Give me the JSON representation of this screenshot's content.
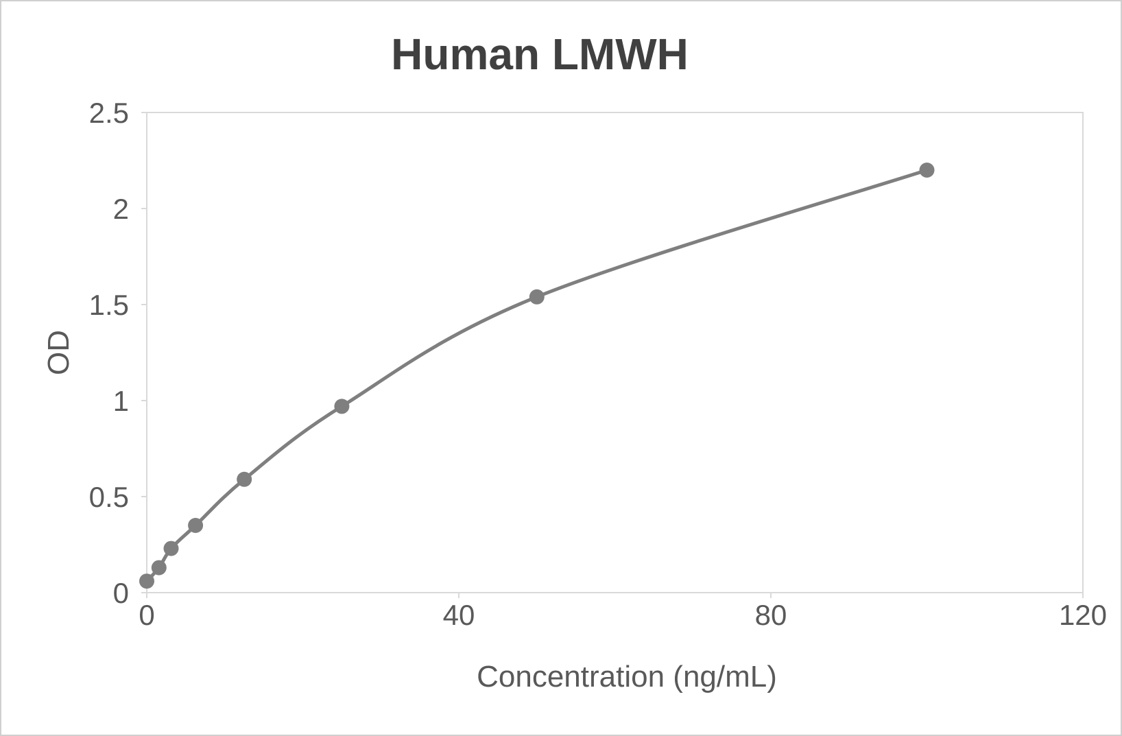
{
  "chart_data": {
    "type": "line",
    "title": "Human LMWH",
    "xlabel": "Concentration (ng/mL)",
    "ylabel": "OD",
    "x": [
      0,
      1.5625,
      3.125,
      6.25,
      12.5,
      25,
      50,
      100
    ],
    "y": [
      0.06,
      0.13,
      0.23,
      0.35,
      0.59,
      0.97,
      1.54,
      2.2
    ],
    "xlim": [
      0,
      120
    ],
    "ylim": [
      0,
      2.5
    ],
    "x_ticks": [
      0,
      40,
      80,
      120
    ],
    "y_ticks": [
      0,
      0.5,
      1,
      1.5,
      2,
      2.5
    ],
    "grid": false,
    "legend": false,
    "line_smooth": true,
    "marker_radius": 11,
    "line_width": 5,
    "colors": {
      "series": "#7f7f7f",
      "marker": "#7f7f7f",
      "title_text": "#404040",
      "axis_text": "#595959",
      "frame": "#d9d9d9",
      "background": "#ffffff"
    }
  }
}
